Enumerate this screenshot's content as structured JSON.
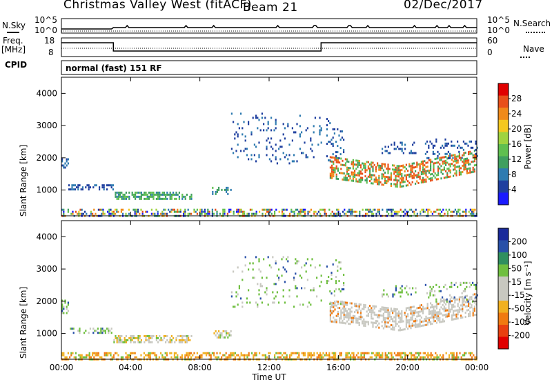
{
  "header": {
    "station": "Christmas Valley West (fitACF)",
    "beam": "Beam 21",
    "date": "02/Dec/2017"
  },
  "panels": {
    "nsky_label": "N.Sky",
    "nsearch_label": "N.Search",
    "nsky_ticks": [
      "10^5",
      "10^0"
    ],
    "nsearch_ticks": [
      "10^5",
      "10^0"
    ],
    "freq_label": "Freq.",
    "freq_unit": "[MHz]",
    "freq_ticks": [
      "18",
      "8"
    ],
    "nave_label": "Nave",
    "nave_ticks": [
      "60",
      "0"
    ],
    "cpid_label": "CPID",
    "cpid_value": "normal (fast) 151 RF"
  },
  "chart_data": [
    {
      "type": "heatmap",
      "name": "power",
      "ylabel": "Slant Range [km]",
      "yticks": [
        1000,
        2000,
        3000,
        4000
      ],
      "ylim": [
        200,
        4500
      ],
      "colorbar_label": "Power [dB]",
      "colorbar_ticks": [
        4,
        8,
        12,
        16,
        20,
        24,
        28
      ],
      "colorbar_range": [
        0,
        32
      ],
      "colorscale": [
        "#1a1aff",
        "#1f3f9f",
        "#2e7bb0",
        "#3f9f5f",
        "#5fbf4f",
        "#9fd33f",
        "#f4c81f",
        "#f08a1a",
        "#e8501a",
        "#e00000"
      ]
    },
    {
      "type": "heatmap",
      "name": "velocity",
      "ylabel": "Slant Range [km]",
      "yticks": [
        1000,
        2000,
        3000,
        4000
      ],
      "ylim": [
        200,
        4500
      ],
      "colorbar_label": "Velocity [m s⁻¹]",
      "colorbar_ticks": [
        200,
        100,
        50,
        15,
        -15,
        -50,
        -100,
        -200
      ],
      "colorscale": [
        "#1a2a9a",
        "#2850a8",
        "#2f8f5f",
        "#6fbf3f",
        "#c8c8c0",
        "#c8c8c0",
        "#f0b020",
        "#f07a10",
        "#e84010",
        "#e00000"
      ]
    }
  ],
  "time_axis": {
    "label": "Time UT",
    "ticks": [
      "00:00",
      "04:00",
      "08:00",
      "12:00",
      "16:00",
      "20:00",
      "00:00"
    ],
    "hours": [
      0,
      4,
      8,
      12,
      16,
      20,
      24
    ]
  }
}
